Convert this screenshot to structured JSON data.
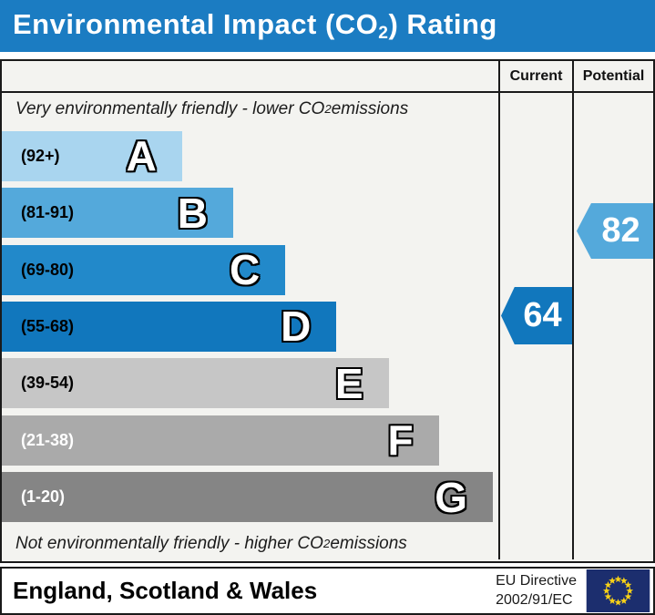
{
  "title": {
    "pre": "Environmental Impact (CO",
    "sub": "2",
    "post": ") Rating"
  },
  "header": {
    "current": "Current",
    "potential": "Potential"
  },
  "notes": {
    "top": {
      "pre": "Very environmentally friendly - lower CO",
      "sub": "2",
      "post": " emissions"
    },
    "bottom": {
      "pre": "Not environmentally friendly - higher CO",
      "sub": "2",
      "post": " emissions"
    }
  },
  "chart_data": {
    "type": "bar",
    "title": "Environmental Impact (CO2) Rating",
    "bands": [
      {
        "letter": "A",
        "range": "(92+)",
        "range_min": 92,
        "range_max": 100,
        "color": "#a9d5ef",
        "range_text_color": "#000000",
        "width_pct": 36.3
      },
      {
        "letter": "B",
        "range": "(81-91)",
        "range_min": 81,
        "range_max": 91,
        "color": "#54a9db",
        "range_text_color": "#000000",
        "width_pct": 46.6
      },
      {
        "letter": "C",
        "range": "(69-80)",
        "range_min": 69,
        "range_max": 80,
        "color": "#2289ca",
        "range_text_color": "#000000",
        "width_pct": 57.1
      },
      {
        "letter": "D",
        "range": "(55-68)",
        "range_min": 55,
        "range_max": 68,
        "color": "#1177bd",
        "range_text_color": "#000000",
        "width_pct": 67.4
      },
      {
        "letter": "E",
        "range": "(39-54)",
        "range_min": 39,
        "range_max": 54,
        "color": "#c6c6c6",
        "range_text_color": "#000000",
        "width_pct": 77.9
      },
      {
        "letter": "F",
        "range": "(21-38)",
        "range_min": 21,
        "range_max": 38,
        "color": "#aaaaaa",
        "range_text_color": "#ffffff",
        "width_pct": 88.0
      },
      {
        "letter": "G",
        "range": "(1-20)",
        "range_min": 1,
        "range_max": 20,
        "color": "#858585",
        "range_text_color": "#ffffff",
        "width_pct": 98.9
      }
    ],
    "current": {
      "value": "64",
      "band": "D",
      "color": "#1177bd"
    },
    "potential": {
      "value": "82",
      "band": "B",
      "color": "#54a9db"
    }
  },
  "footer": {
    "region": "England, Scotland & Wales",
    "directive_line1": "EU Directive",
    "directive_line2": "2002/91/EC"
  },
  "colors": {
    "title_bar": "#1b7cc2",
    "title_text": "#ffffff",
    "border": "#1a1a1a",
    "chart_background": "#f3f3f0",
    "flag_field": "#1c2e6e",
    "flag_stars": "#f7d117"
  }
}
